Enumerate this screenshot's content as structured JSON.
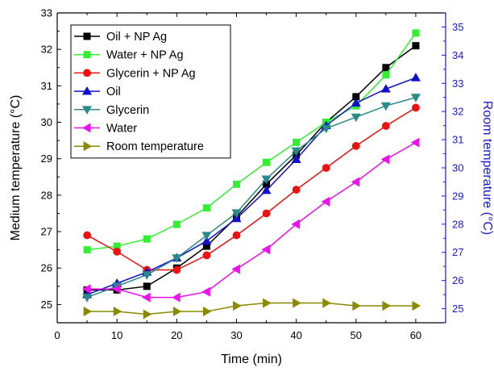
{
  "chart_data": {
    "type": "line",
    "title": "",
    "xlabel": "Time (min)",
    "ylabel_left": "Medium temperature (°C)",
    "ylabel_right": "Room temperature (°C)",
    "xlim": [
      0,
      65
    ],
    "ylim_left": [
      24.5,
      33
    ],
    "ylim_right": [
      24.5,
      35.5
    ],
    "x_ticks": [
      0,
      10,
      20,
      30,
      40,
      50,
      60
    ],
    "y_left_ticks": [
      25,
      26,
      27,
      28,
      29,
      30,
      31,
      32,
      33
    ],
    "y_right_ticks": [
      25,
      26,
      27,
      28,
      29,
      30,
      31,
      32,
      33,
      34,
      35
    ],
    "grid": false,
    "legend_position": "top-left",
    "x": [
      5,
      10,
      15,
      20,
      25,
      30,
      35,
      40,
      45,
      50,
      55,
      60
    ],
    "series": [
      {
        "name": "Oil + NP Ag",
        "color": "#000000",
        "marker": "square",
        "axis": "left",
        "values": [
          25.4,
          25.4,
          25.5,
          26.0,
          26.6,
          27.4,
          28.3,
          29.1,
          30.0,
          30.7,
          31.5,
          32.1
        ]
      },
      {
        "name": "Water + NP Ag",
        "color": "#33ee33",
        "marker": "square",
        "axis": "left",
        "values": [
          26.5,
          26.6,
          26.8,
          27.2,
          27.65,
          28.3,
          28.9,
          29.45,
          30.0,
          30.45,
          31.3,
          32.45
        ]
      },
      {
        "name": "Glycerin + NP Ag",
        "color": "#ee1111",
        "marker": "circle",
        "axis": "left",
        "values": [
          26.9,
          26.45,
          25.95,
          25.95,
          26.35,
          26.9,
          27.5,
          28.15,
          28.75,
          29.35,
          29.9,
          30.4
        ]
      },
      {
        "name": "Oil",
        "color": "#1111cc",
        "marker": "triangle-up",
        "axis": "right",
        "values": [
          25.5,
          25.9,
          26.3,
          26.8,
          27.4,
          28.2,
          29.2,
          30.3,
          31.5,
          32.3,
          32.8,
          33.2
        ]
      },
      {
        "name": "Glycerin",
        "color": "#2a8a8a",
        "marker": "triangle-down",
        "axis": "right",
        "values": [
          25.4,
          25.8,
          26.2,
          26.8,
          27.6,
          28.4,
          29.6,
          30.6,
          31.4,
          31.8,
          32.2,
          32.5
        ]
      },
      {
        "name": "Water",
        "color": "#ee11ee",
        "marker": "triangle-left",
        "axis": "right",
        "values": [
          25.7,
          25.7,
          25.4,
          25.4,
          25.6,
          26.4,
          27.1,
          28.0,
          28.8,
          29.5,
          30.3,
          30.9
        ]
      },
      {
        "name": "Room temperature",
        "color": "#8a8a00",
        "marker": "triangle-right",
        "axis": "right",
        "values": [
          24.9,
          24.9,
          24.8,
          24.9,
          24.9,
          25.1,
          25.2,
          25.2,
          25.2,
          25.1,
          25.1,
          25.1
        ]
      }
    ]
  }
}
